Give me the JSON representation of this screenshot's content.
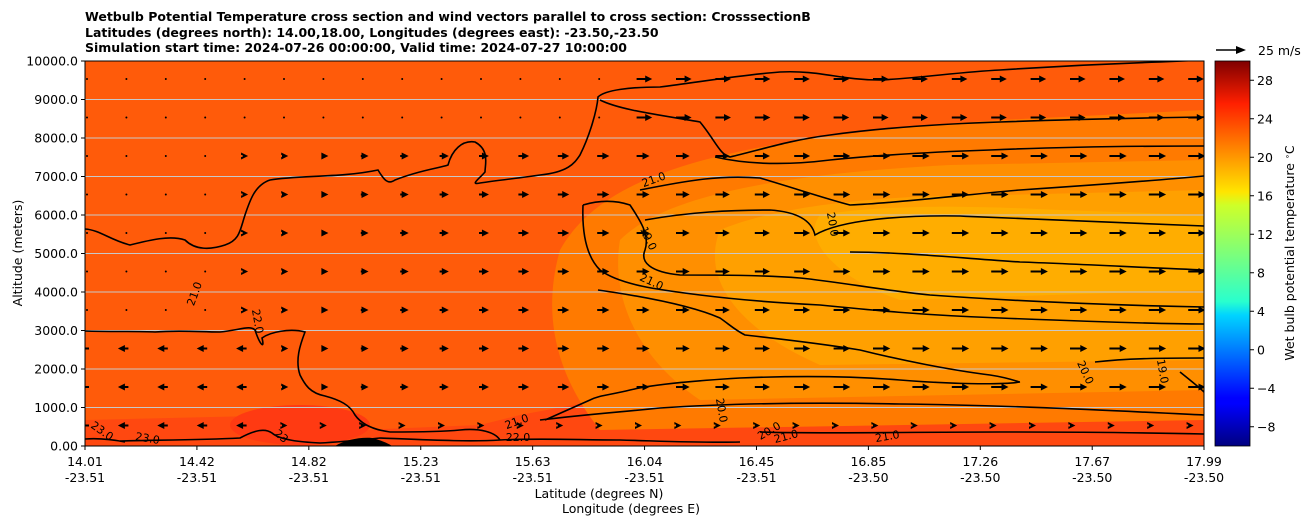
{
  "chart_data": {
    "type": "heatmap",
    "title_lines": [
      "Wetbulb Potential Temperature cross section and wind vectors parallel to cross section: CrosssectionB",
      "Latitudes (degrees north): 14.00,18.00, Longitudes (degrees east): -23.50,-23.50",
      "Simulation start time: 2024-07-26 00:00:00, Valid time: 2024-07-27 10:00:00"
    ],
    "ylabel": "Altitude (meters)",
    "xlabel_lines": [
      "Latitude (degrees N)",
      "Longitude (degrees E)"
    ],
    "ylim": [
      0,
      10000
    ],
    "y_ticks": [
      "0.00",
      "1000.0",
      "2000.0",
      "3000.0",
      "4000.0",
      "5000.0",
      "6000.0",
      "7000.0",
      "8000.0",
      "9000.0",
      "10000.0"
    ],
    "x_ticks": [
      {
        "lat": "14.01",
        "lon": "-23.51"
      },
      {
        "lat": "14.42",
        "lon": "-23.51"
      },
      {
        "lat": "14.82",
        "lon": "-23.51"
      },
      {
        "lat": "15.23",
        "lon": "-23.51"
      },
      {
        "lat": "15.63",
        "lon": "-23.51"
      },
      {
        "lat": "16.04",
        "lon": "-23.51"
      },
      {
        "lat": "16.45",
        "lon": "-23.51"
      },
      {
        "lat": "16.85",
        "lon": "-23.50"
      },
      {
        "lat": "17.26",
        "lon": "-23.50"
      },
      {
        "lat": "17.67",
        "lon": "-23.50"
      },
      {
        "lat": "17.99",
        "lon": "-23.50"
      }
    ],
    "colorbar": {
      "label": "Wet bulb potential temperature $^\\circ$C",
      "range": [
        -10,
        30
      ],
      "ticks": [
        "−8",
        "−4",
        "0",
        "4",
        "8",
        "12",
        "16",
        "20",
        "24",
        "28"
      ],
      "colormap": "jet"
    },
    "wind_key": {
      "label": "25 m/s"
    },
    "contour_labels": [
      "21.0",
      "20.0",
      "19.0",
      "21.0",
      "21.0",
      "22.0",
      "23.0",
      "23.0",
      "23",
      "21.0",
      "22.0",
      "20.0",
      "20.0",
      "21.0",
      "21.0",
      "20.0",
      "19.0"
    ],
    "grid": true
  }
}
